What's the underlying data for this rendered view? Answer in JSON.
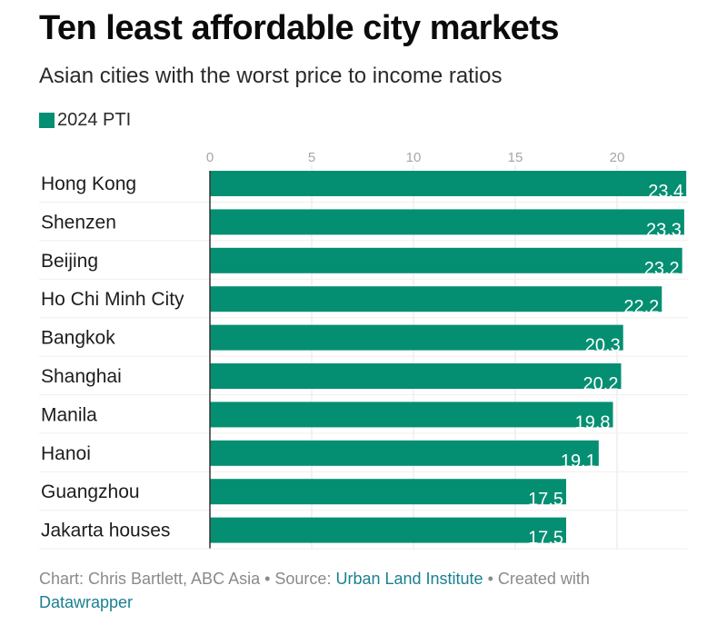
{
  "header": {
    "title": "Ten least affordable city markets",
    "subtitle": "Asian cities with the worst price to income ratios"
  },
  "colors": {
    "bar": "#048f72",
    "label_inside": "#ffffff",
    "tick": "#a6a6a6",
    "grid": "#e6e6e6",
    "axis": "#333333",
    "link": "#1b7f92"
  },
  "chart_data": {
    "type": "bar",
    "orientation": "horizontal",
    "title": "Ten least affordable city markets",
    "subtitle": "Asian cities with the worst price to income ratios",
    "xlabel": "",
    "ylabel": "",
    "xlim": [
      0,
      23.4
    ],
    "xticks": [
      0,
      5,
      10,
      15,
      20
    ],
    "grid": true,
    "legend": {
      "position": "top-left",
      "entries": [
        "2024 PTI"
      ]
    },
    "categories": [
      "Hong Kong",
      "Shenzen",
      "Beijing",
      "Ho Chi Minh City",
      "Bangkok",
      "Shanghai",
      "Manila",
      "Hanoi",
      "Guangzhou",
      "Jakarta houses"
    ],
    "series": [
      {
        "name": "2024 PTI",
        "values": [
          23.4,
          23.3,
          23.2,
          22.2,
          20.3,
          20.2,
          19.8,
          19.1,
          17.5,
          17.5
        ]
      }
    ],
    "value_labels": [
      "23.4",
      "23.3",
      "23.2",
      "22.2",
      "20.3",
      "20.2",
      "19.8",
      "19.1",
      "17.5",
      "17.5"
    ]
  },
  "footer": {
    "chart_credit": "Chart: Chris Bartlett, ABC Asia",
    "separator": " • ",
    "source_prefix": "Source: ",
    "source_link": "Urban Land Institute",
    "created_prefix": "Created with ",
    "created_link": "Datawrapper"
  }
}
